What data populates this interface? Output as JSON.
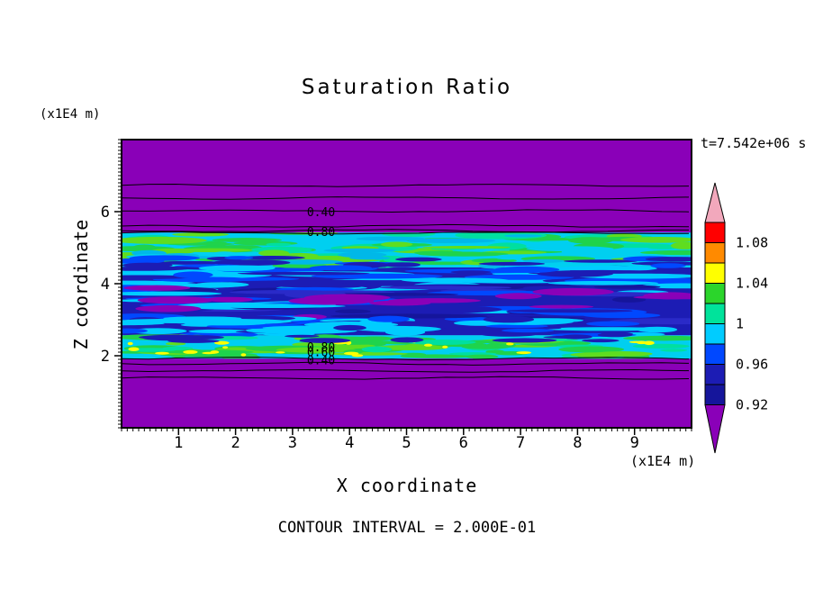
{
  "chart_data": {
    "type": "heatmap",
    "title": "Saturation Ratio",
    "xlabel": "X coordinate",
    "ylabel": "Z coordinate",
    "x_unit_label": "(x1E4 m)",
    "y_unit_label": "(x1E4 m)",
    "time_annotation": "t=7.542e+06 s",
    "contour_interval_note": "CONTOUR INTERVAL = 2.000E-01",
    "contour_interval": 0.2,
    "xlim": [
      0,
      10
    ],
    "ylim": [
      0,
      8
    ],
    "x_ticks": [
      1,
      2,
      3,
      4,
      5,
      6,
      7,
      8,
      9
    ],
    "y_ticks": [
      2,
      4,
      6
    ],
    "x_minor_step": 0.1,
    "y_minor_step": 0.1,
    "grid": false,
    "legend_position": "right-colorbar",
    "regions": [
      {
        "name": "background-unsaturated-purple",
        "z_from": 0,
        "z_to": 8,
        "color": "#8A00B8",
        "value": "< 0.40"
      },
      {
        "name": "upper-transition-band",
        "z_from": 4.45,
        "z_to": 5.42,
        "color": "#00CFF0",
        "value": "0.80 - 1.00"
      },
      {
        "name": "middle-saturated-zone",
        "z_from": 2.57,
        "z_to": 4.45,
        "color": "#1C1CB4",
        "value": "0.92 - 0.96"
      },
      {
        "name": "lower-transition-band",
        "z_from": 1.92,
        "z_to": 2.57,
        "color": "#00CFF0",
        "value": "0.80 - 1.00"
      }
    ],
    "contour_lines_z": [
      6.73,
      6.38,
      6.02,
      5.6,
      5.47,
      5.41,
      1.92,
      1.78,
      1.58,
      1.38
    ],
    "contour_labels": [
      {
        "text": "0.40",
        "x": 3.5,
        "z": 5.875
      },
      {
        "text": "0.80",
        "x": 3.5,
        "z": 5.33
      },
      {
        "text": "0.80",
        "x": 3.5,
        "z": 2.12
      },
      {
        "text": "0.60",
        "x": 3.5,
        "z": 1.99
      },
      {
        "text": "0.40",
        "x": 3.5,
        "z": 1.76
      }
    ],
    "colorbar": {
      "labels": [
        {
          "text": "1.08",
          "value": 1.08
        },
        {
          "text": "1.04",
          "value": 1.04
        },
        {
          "text": "1",
          "value": 1.0
        },
        {
          "text": "0.96",
          "value": 0.96
        },
        {
          "text": "0.92",
          "value": 0.92
        }
      ],
      "segments_top_to_bottom": [
        {
          "color": "#F2A8BC",
          "shape": "triangle-up"
        },
        {
          "color": "#FF0000"
        },
        {
          "color": "#FF8A00"
        },
        {
          "color": "#FFFF00"
        },
        {
          "color": "#2BD52B"
        },
        {
          "color": "#00E39B"
        },
        {
          "color": "#00CCFF"
        },
        {
          "color": "#0048FF"
        },
        {
          "color": "#1C1CB4"
        },
        {
          "color": "#15159B"
        },
        {
          "color": "#8A00B8",
          "shape": "triangle-down"
        }
      ]
    },
    "texture": {
      "seed": 1337,
      "clip_z": [
        1.92,
        5.42
      ],
      "bands": [
        {
          "name": "upper-band-greens",
          "z_from": 4.5,
          "z_to": 5.42,
          "n": 80,
          "colors": [
            "#1FD34C",
            "#5FDD1F",
            "#00DFA0",
            "#1FD34C"
          ],
          "rx": [
            10,
            55
          ],
          "ry": [
            1.6,
            4.2
          ]
        },
        {
          "name": "upper-band-cyan",
          "z_from": 4.45,
          "z_to": 5.35,
          "n": 30,
          "colors": [
            "#00B8E8",
            "#00CFF0"
          ],
          "rx": [
            12,
            50
          ],
          "ry": [
            1.6,
            3.6
          ]
        },
        {
          "name": "upper-band-navy-edge",
          "z_from": 4.4,
          "z_to": 4.72,
          "n": 22,
          "colors": [
            "#1C1CB4",
            "#0048FF"
          ],
          "rx": [
            14,
            48
          ],
          "ry": [
            1.6,
            3.4
          ]
        },
        {
          "name": "mid-top-cyan-streaks",
          "z_from": 3.85,
          "z_to": 4.45,
          "n": 55,
          "colors": [
            "#00CCFF",
            "#00CCFF",
            "#0048FF",
            "#1C1CB4"
          ],
          "rx": [
            18,
            85
          ],
          "ry": [
            1.8,
            4.0
          ]
        },
        {
          "name": "mid-core-streaks",
          "z_from": 2.95,
          "z_to": 3.95,
          "n": 70,
          "colors": [
            "#00CCFF",
            "#15159B",
            "#2A2AC8",
            "#00CCFF",
            "#0048FF",
            "#15159B",
            "#1C1CB4"
          ],
          "rx": [
            18,
            90
          ],
          "ry": [
            1.8,
            4.4
          ]
        },
        {
          "name": "mid-purple-patches",
          "z_from": 3.05,
          "z_to": 3.9,
          "n": 14,
          "colors": [
            "#8A00B8"
          ],
          "rx": [
            16,
            55
          ],
          "ry": [
            2.0,
            4.5
          ]
        },
        {
          "name": "mid-bottom-cyan-streaks",
          "z_from": 2.55,
          "z_to": 3.05,
          "n": 45,
          "colors": [
            "#00CCFF",
            "#00CCFF",
            "#0048FF",
            "#1C1CB4"
          ],
          "rx": [
            18,
            80
          ],
          "ry": [
            1.8,
            3.8
          ]
        },
        {
          "name": "lower-band-greens",
          "z_from": 1.95,
          "z_to": 2.55,
          "n": 75,
          "colors": [
            "#1FD34C",
            "#5FDD1F",
            "#00DFA0",
            "#1FD34C"
          ],
          "rx": [
            10,
            50
          ],
          "ry": [
            1.5,
            3.8
          ]
        },
        {
          "name": "lower-band-yellow-specks",
          "z_from": 2.0,
          "z_to": 2.45,
          "n": 22,
          "colors": [
            "#FFFF00"
          ],
          "rx": [
            2.5,
            9
          ],
          "ry": [
            1.2,
            2.4
          ]
        },
        {
          "name": "lower-band-navy-edge",
          "z_from": 2.4,
          "z_to": 2.62,
          "n": 14,
          "colors": [
            "#1C1CB4"
          ],
          "rx": [
            12,
            40
          ],
          "ry": [
            1.4,
            3.0
          ]
        }
      ]
    }
  }
}
